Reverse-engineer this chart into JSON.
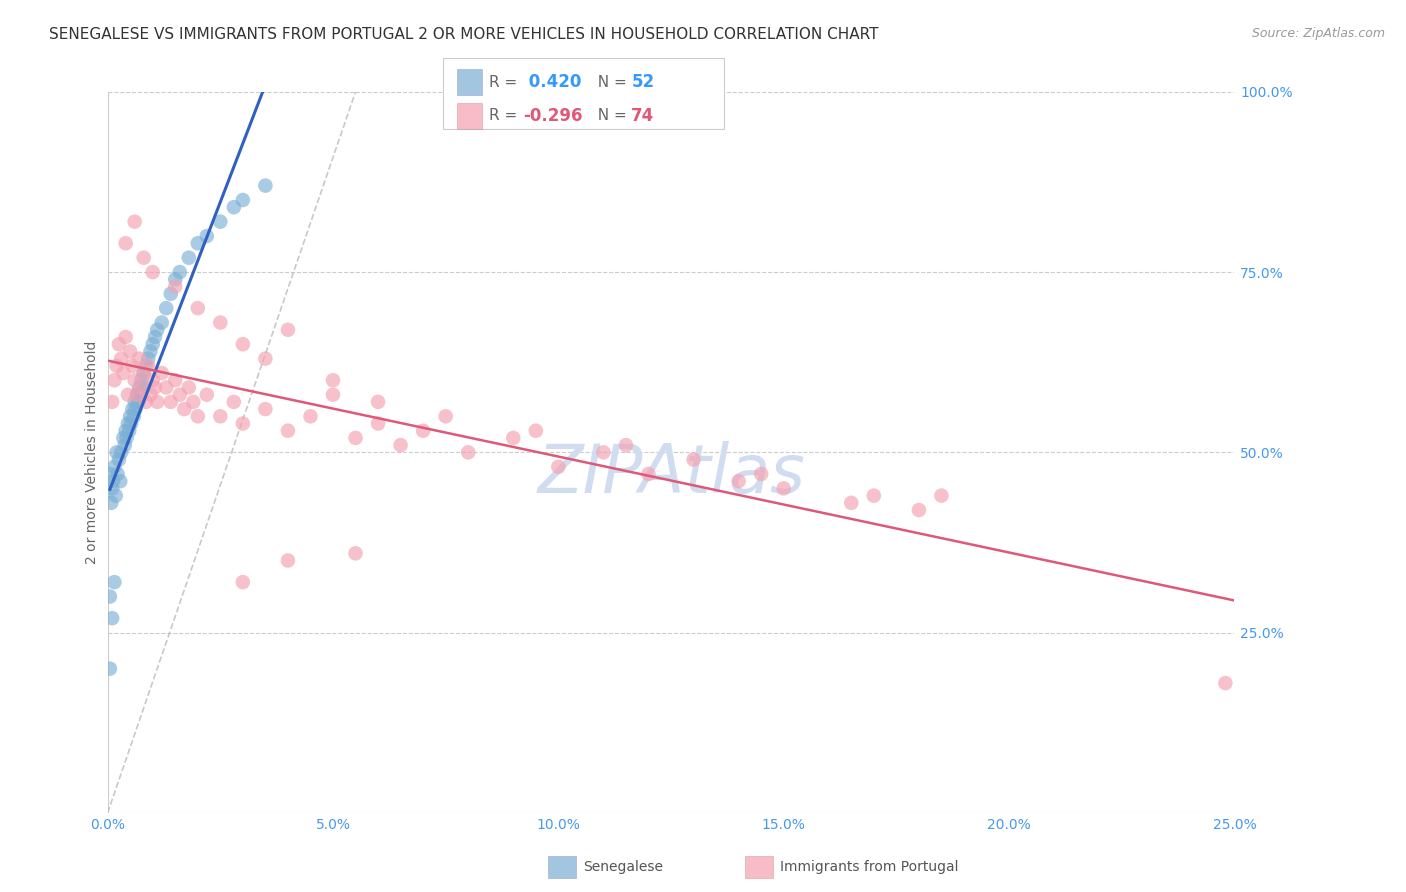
{
  "title": "SENEGALESE VS IMMIGRANTS FROM PORTUGAL 2 OR MORE VEHICLES IN HOUSEHOLD CORRELATION CHART",
  "source": "Source: ZipAtlas.com",
  "ylabel": "2 or more Vehicles in Household",
  "xlabel_ticks": [
    0.0,
    5.0,
    10.0,
    15.0,
    20.0,
    25.0
  ],
  "ylabel_right_ticks": [
    25.0,
    50.0,
    75.0,
    100.0
  ],
  "xmin": 0.0,
  "xmax": 25.0,
  "ymin": 0.0,
  "ymax": 100.0,
  "R_blue": 0.42,
  "N_blue": 52,
  "R_pink": -0.296,
  "N_pink": 74,
  "legend_label_blue": "Senegalese",
  "legend_label_pink": "Immigrants from Portugal",
  "color_blue": "#7BAFD4",
  "color_pink": "#F4A0B0",
  "line_color_blue": "#3060C0",
  "line_color_pink": "#E05878",
  "watermark": "ZIPAtlas",
  "watermark_color": "#D0DCF0",
  "title_fontsize": 11,
  "source_fontsize": 9,
  "blue_x": [
    0.05,
    0.08,
    0.1,
    0.12,
    0.15,
    0.18,
    0.2,
    0.22,
    0.25,
    0.28,
    0.3,
    0.35,
    0.38,
    0.4,
    0.42,
    0.45,
    0.48,
    0.5,
    0.52,
    0.55,
    0.58,
    0.6,
    0.62,
    0.65,
    0.68,
    0.7,
    0.72,
    0.75,
    0.78,
    0.8,
    0.85,
    0.9,
    0.95,
    1.0,
    1.05,
    1.1,
    1.2,
    1.3,
    1.4,
    1.5,
    1.6,
    1.8,
    2.0,
    2.2,
    2.5,
    2.8,
    3.0,
    3.5,
    0.05,
    0.1,
    0.15,
    0.05
  ],
  "blue_y": [
    47.0,
    43.0,
    45.0,
    46.0,
    48.0,
    44.0,
    50.0,
    47.0,
    49.0,
    46.0,
    50.0,
    52.0,
    51.0,
    53.0,
    52.0,
    54.0,
    53.0,
    55.0,
    54.0,
    56.0,
    55.0,
    57.0,
    56.0,
    58.0,
    57.0,
    59.0,
    58.0,
    60.0,
    59.0,
    61.0,
    62.0,
    63.0,
    64.0,
    65.0,
    66.0,
    67.0,
    68.0,
    70.0,
    72.0,
    74.0,
    75.0,
    77.0,
    79.0,
    80.0,
    82.0,
    84.0,
    85.0,
    87.0,
    30.0,
    27.0,
    32.0,
    20.0
  ],
  "pink_x": [
    0.1,
    0.15,
    0.2,
    0.25,
    0.3,
    0.35,
    0.4,
    0.45,
    0.5,
    0.55,
    0.6,
    0.65,
    0.7,
    0.75,
    0.8,
    0.85,
    0.9,
    0.95,
    1.0,
    1.05,
    1.1,
    1.2,
    1.3,
    1.4,
    1.5,
    1.6,
    1.7,
    1.8,
    1.9,
    2.0,
    2.2,
    2.5,
    2.8,
    3.0,
    3.5,
    4.0,
    4.5,
    5.0,
    5.5,
    6.0,
    6.5,
    7.0,
    8.0,
    9.0,
    10.0,
    11.0,
    12.0,
    13.0,
    14.0,
    15.0,
    16.5,
    17.0,
    18.0,
    5.0,
    6.0,
    7.5,
    9.5,
    11.5,
    14.5,
    18.5,
    3.0,
    3.5,
    4.0,
    0.4,
    0.6,
    0.8,
    1.0,
    1.5,
    2.0,
    2.5,
    3.0,
    4.0,
    5.5,
    24.8
  ],
  "pink_y": [
    57.0,
    60.0,
    62.0,
    65.0,
    63.0,
    61.0,
    66.0,
    58.0,
    64.0,
    62.0,
    60.0,
    58.0,
    63.0,
    59.0,
    61.0,
    57.0,
    62.0,
    58.0,
    60.0,
    59.0,
    57.0,
    61.0,
    59.0,
    57.0,
    60.0,
    58.0,
    56.0,
    59.0,
    57.0,
    55.0,
    58.0,
    55.0,
    57.0,
    54.0,
    56.0,
    53.0,
    55.0,
    58.0,
    52.0,
    54.0,
    51.0,
    53.0,
    50.0,
    52.0,
    48.0,
    50.0,
    47.0,
    49.0,
    46.0,
    45.0,
    43.0,
    44.0,
    42.0,
    60.0,
    57.0,
    55.0,
    53.0,
    51.0,
    47.0,
    44.0,
    65.0,
    63.0,
    67.0,
    79.0,
    82.0,
    77.0,
    75.0,
    73.0,
    70.0,
    68.0,
    32.0,
    35.0,
    36.0,
    18.0
  ]
}
